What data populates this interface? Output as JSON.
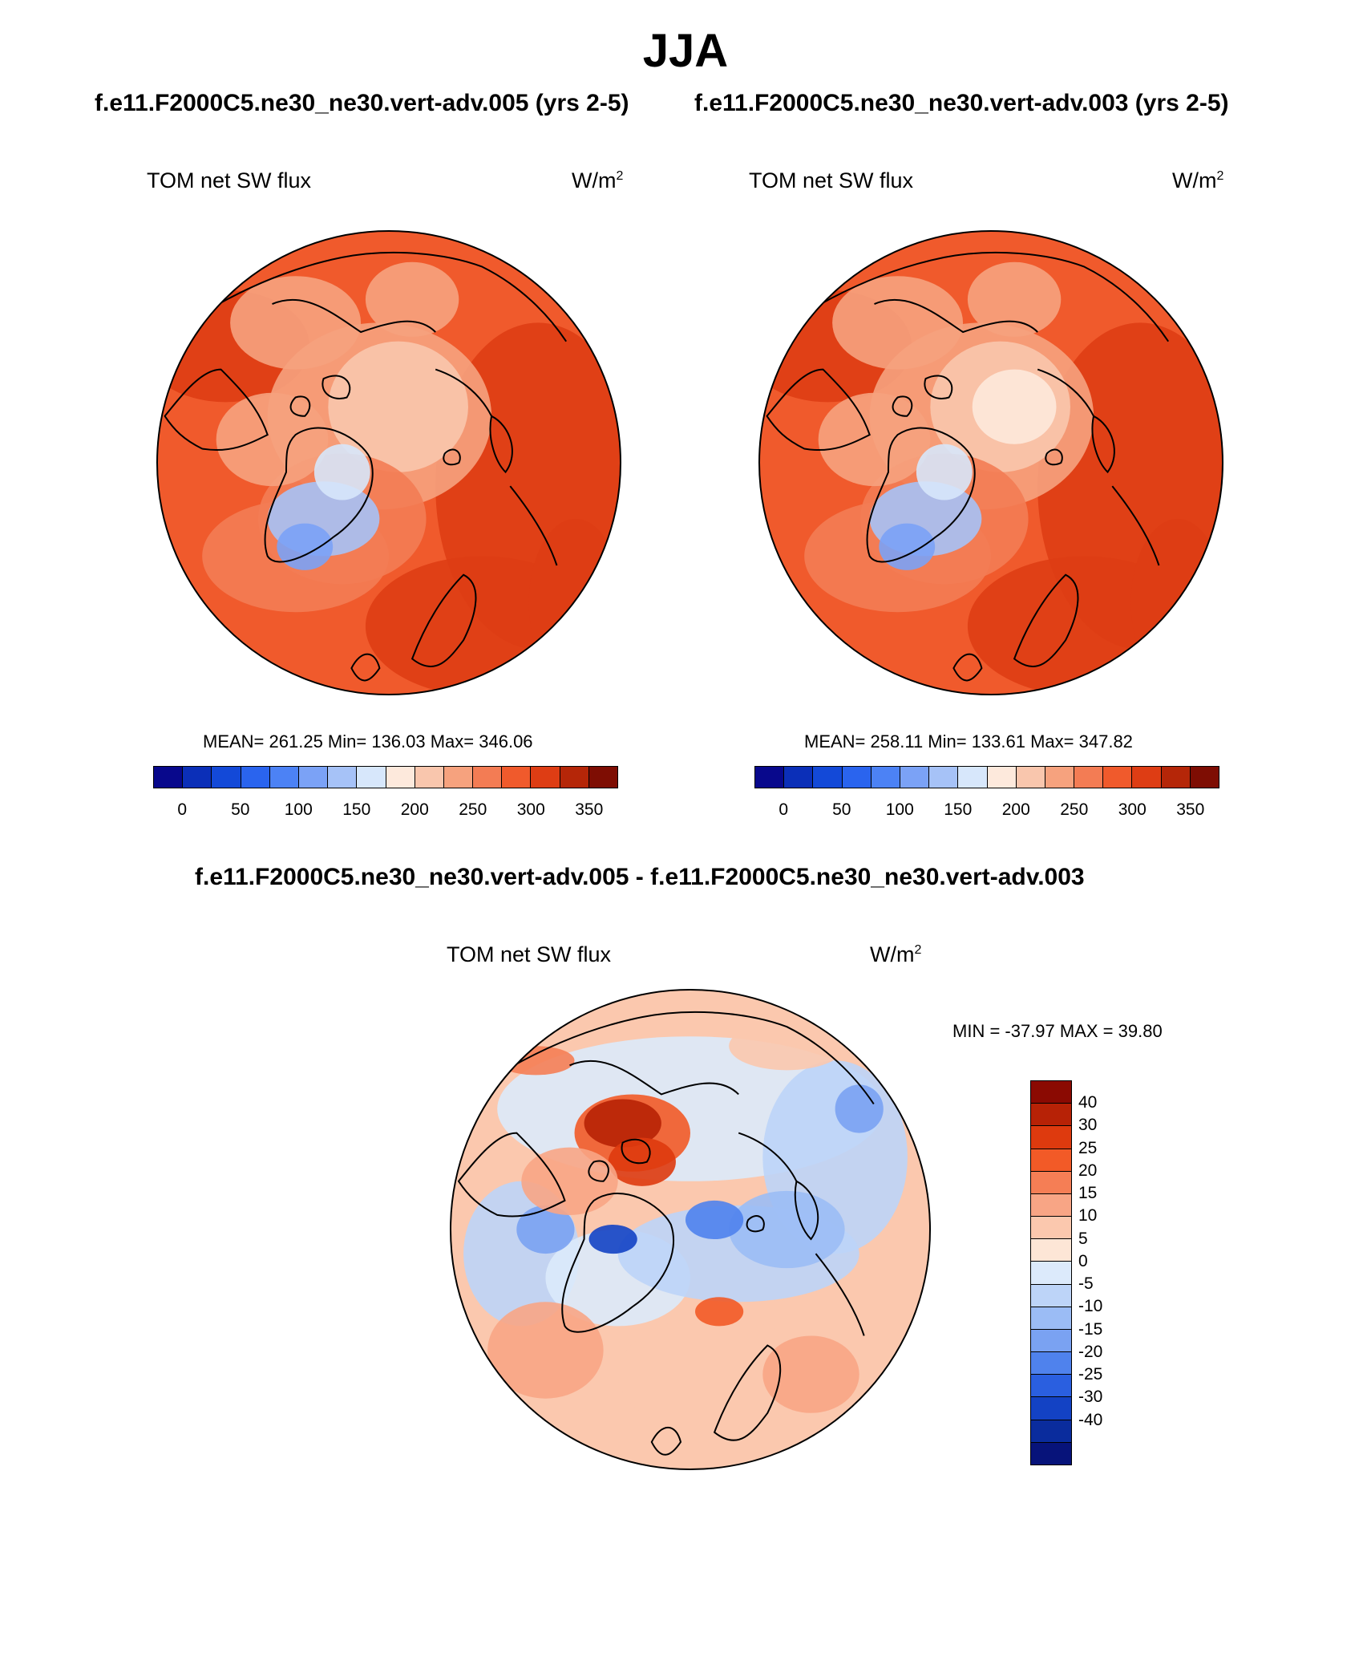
{
  "title": "JJA",
  "case_header": {
    "left": "f.e11.F2000C5.ne30_ne30.vert-adv.005 (yrs 2-5)",
    "right": "f.e11.F2000C5.ne30_ne30.vert-adv.003 (yrs 2-5)"
  },
  "diff_header": "f.e11.F2000C5.ne30_ne30.vert-adv.005 - f.e11.F2000C5.ne30_ne30.vert-adv.003",
  "panels": [
    {
      "variable": "TOM net SW flux",
      "units": "W/m",
      "units_sup": "2",
      "stats": "MEAN= 261.25  Min= 136.03  Max= 346.06",
      "field": "base1"
    },
    {
      "variable": "TOM net SW flux",
      "units": "W/m",
      "units_sup": "2",
      "stats": "MEAN= 258.11  Min= 133.61  Max= 347.82",
      "field": "base2"
    },
    {
      "variable": "TOM net SW flux",
      "units": "W/m",
      "units_sup": "2",
      "stats": "MIN = -37.97 MAX =  39.80",
      "field": "diff"
    }
  ],
  "abs_colorbar": {
    "colors": [
      "#08088c",
      "#0b2fb8",
      "#1349d8",
      "#2a64ee",
      "#4c82f5",
      "#7ba2f6",
      "#a6c2f7",
      "#d7e7fb",
      "#fde9dc",
      "#f9c6ad",
      "#f6a27e",
      "#f37c54",
      "#f05a2c",
      "#de3d14",
      "#b52608",
      "#7e0d03"
    ],
    "ticks": [
      "0",
      "50",
      "100",
      "150",
      "200",
      "250",
      "300",
      "350"
    ]
  },
  "diff_colorbar": {
    "colors": [
      "#8b0a02",
      "#b72206",
      "#de3a0e",
      "#f25a27",
      "#f57e55",
      "#f8a585",
      "#fbc8ae",
      "#fde6d6",
      "#dceafb",
      "#bdd4f8",
      "#9bbcf5",
      "#7aa2f2",
      "#4f82ed",
      "#2a5fe0",
      "#1342c4",
      "#0a2c9d",
      "#07137a"
    ],
    "ticks": [
      "40",
      "30",
      "25",
      "20",
      "15",
      "10",
      "5",
      "0",
      "-5",
      "-10",
      "-15",
      "-20",
      "-25",
      "-30",
      "-40"
    ]
  },
  "chart_data": [
    {
      "type": "heatmap",
      "title": "TOM net SW flux",
      "subtitle": "f.e11.F2000C5.ne30_ne30.vert-adv.005 (yrs 2-5)",
      "projection": "north polar stereographic",
      "units": "W/m2",
      "mean": 261.25,
      "min": 136.03,
      "max": 346.06,
      "colorbar_range": [
        0,
        350
      ]
    },
    {
      "type": "heatmap",
      "title": "TOM net SW flux",
      "subtitle": "f.e11.F2000C5.ne30_ne30.vert-adv.003 (yrs 2-5)",
      "projection": "north polar stereographic",
      "units": "W/m2",
      "mean": 258.11,
      "min": 133.61,
      "max": 347.82,
      "colorbar_range": [
        0,
        350
      ]
    },
    {
      "type": "heatmap",
      "title": "TOM net SW flux",
      "subtitle": "f.e11.F2000C5.ne30_ne30.vert-adv.005 - f.e11.F2000C5.ne30_ne30.vert-adv.003",
      "projection": "north polar stereographic",
      "units": "W/m2",
      "min": -37.97,
      "max": 39.8,
      "colorbar_levels": [
        -40,
        -30,
        -25,
        -20,
        -15,
        -10,
        -5,
        0,
        5,
        10,
        15,
        20,
        25,
        30,
        40
      ]
    }
  ]
}
